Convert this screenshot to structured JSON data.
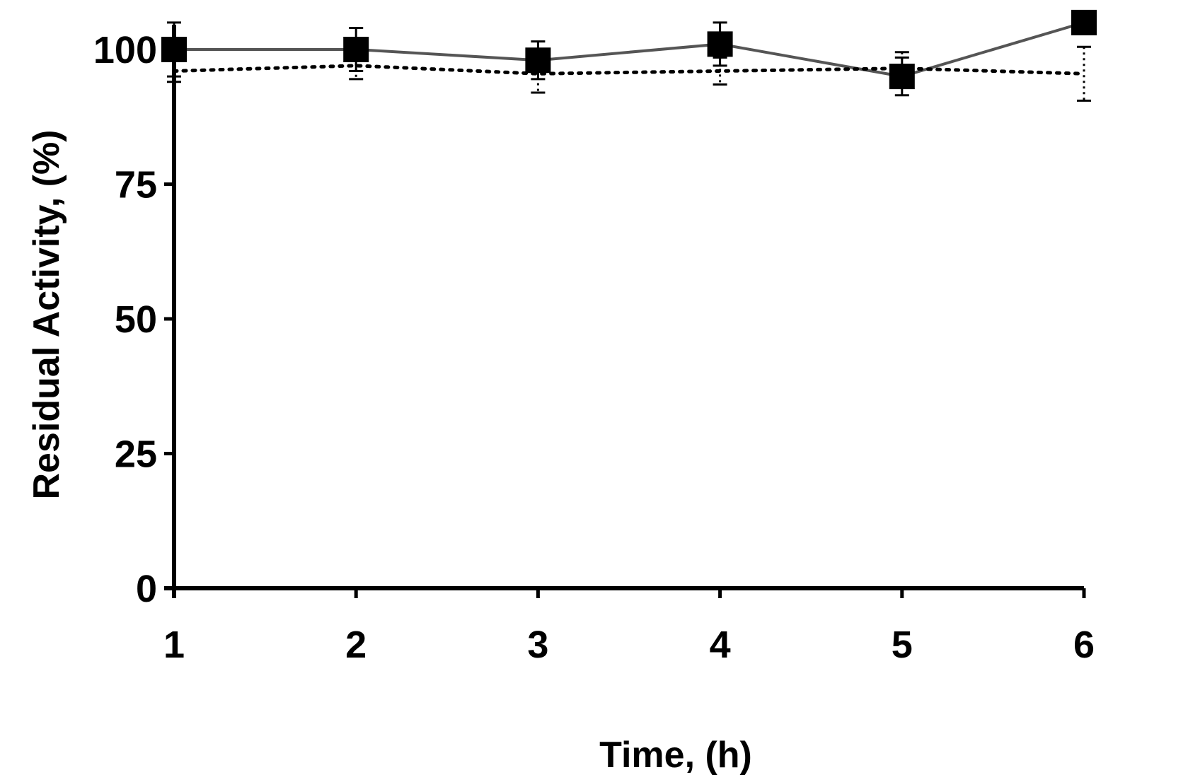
{
  "chart_data": {
    "type": "line",
    "title": "",
    "xlabel": "Time, (h)",
    "ylabel": "Residual Activity, (%)",
    "xlim": [
      1,
      6
    ],
    "ylim": [
      0,
      105
    ],
    "x_ticks": [
      "1",
      "2",
      "3",
      "4",
      "5",
      "6"
    ],
    "y_ticks": [
      "0",
      "25",
      "50",
      "75",
      "100"
    ],
    "grid": false,
    "legend": "none",
    "series": [
      {
        "style": "solid",
        "marker": "square",
        "color": "#000000",
        "line_color": "#555555",
        "x": [
          1,
          2,
          3,
          4,
          5,
          6
        ],
        "y": [
          100,
          100,
          98,
          101,
          95,
          105
        ],
        "error": [
          5,
          4,
          3.5,
          4,
          3.5,
          0
        ]
      },
      {
        "style": "dotted",
        "marker": "none",
        "color": "#000000",
        "x": [
          1,
          2,
          3,
          4,
          5,
          6
        ],
        "y": [
          96,
          97,
          95.5,
          96,
          96.5,
          95.5
        ],
        "error": [
          2,
          2.5,
          3.5,
          2.5,
          3,
          5
        ]
      }
    ]
  }
}
